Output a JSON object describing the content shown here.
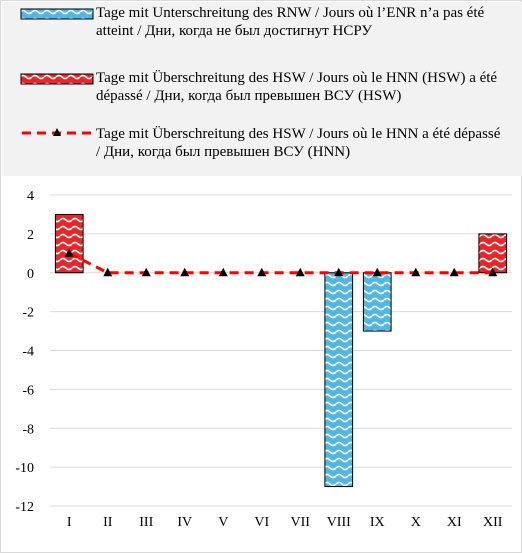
{
  "chart_data": {
    "type": "bar",
    "categories": [
      "I",
      "II",
      "III",
      "IV",
      "V",
      "VI",
      "VII",
      "VIII",
      "IX",
      "X",
      "XI",
      "XII"
    ],
    "series": [
      {
        "name": "Tage mit Unterschreitung des RNW / Jours où l’ENR n’a pas été atteint / Дни, когда не был достигнут НСРУ",
        "kind": "bar",
        "color": "#4fb6e6",
        "values": [
          0,
          0,
          0,
          0,
          0,
          0,
          0,
          -11,
          -3,
          0,
          0,
          0
        ]
      },
      {
        "name": "Tage mit Überschreitung des HSW / Jours où le HNN (HSW) a été dépassé / Дни, когда был превышен ВСУ (HSW)",
        "kind": "bar",
        "color": "#e8262a",
        "values": [
          3,
          0,
          0,
          0,
          0,
          0,
          0,
          0,
          0,
          0,
          0,
          2
        ]
      },
      {
        "name": "Tage mit Überschreitung des HSW / Jours où le HNN a été dépassé / Дни, когда был превышен ВСУ (HNN)",
        "kind": "line",
        "color": "#ff0000",
        "values": [
          1,
          0,
          0,
          0,
          0,
          0,
          0,
          0,
          0,
          0,
          0,
          0
        ]
      }
    ],
    "y_ticks": [
      "4",
      "2",
      "0",
      "-2",
      "-4",
      "-6",
      "-8",
      "-10",
      "-12"
    ],
    "ylim": [
      -12,
      4
    ],
    "y_step": 2,
    "grid": true,
    "legend_position": "top"
  }
}
